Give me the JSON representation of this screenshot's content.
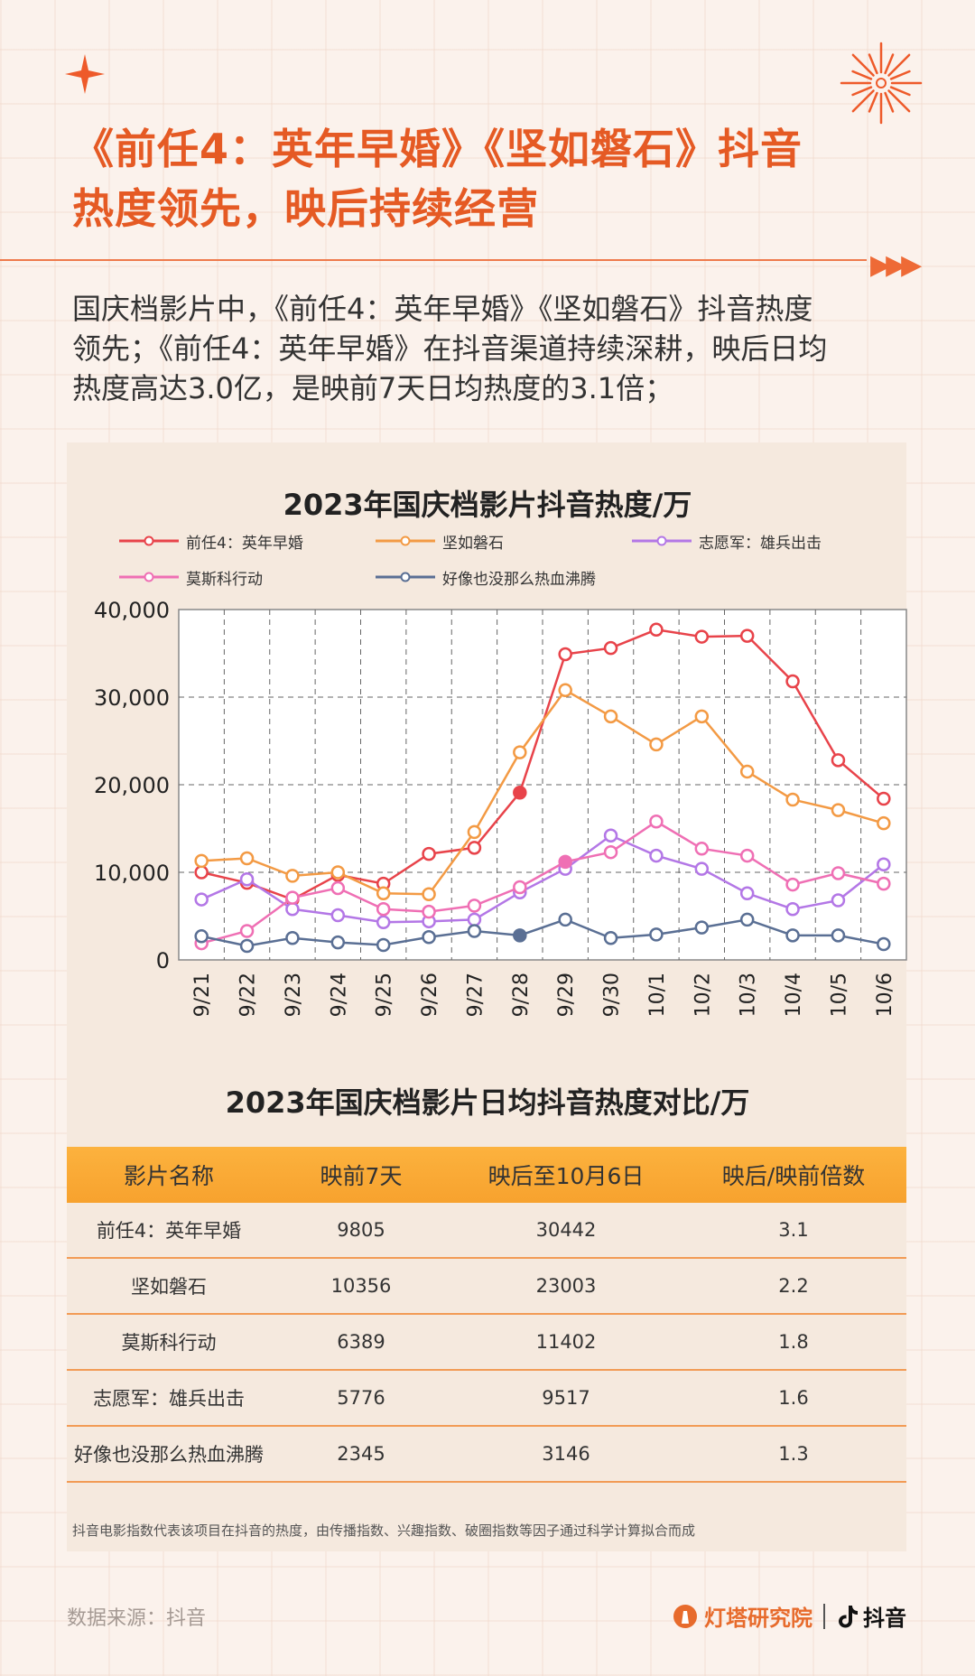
{
  "header": {
    "title_line1": "《前任4：英年早婚》《坚如磐石》抖音",
    "title_line2": "热度领先，映后持续经营",
    "arrows": "▶▶▶"
  },
  "intro": {
    "line1": "国庆档影片中，《前任4：英年早婚》《坚如磐石》抖音热度",
    "line2": "领先；《前任4：英年早婚》在抖音渠道持续深耕，映后日均",
    "line3": "热度高达3.0亿，是映前7天日均热度的3.1倍；"
  },
  "chart_data": {
    "type": "line",
    "title": "2023年国庆档影片抖音热度/万",
    "categories": [
      "9/21",
      "9/22",
      "9/23",
      "9/24",
      "9/25",
      "9/26",
      "9/27",
      "9/28",
      "9/29",
      "9/30",
      "10/1",
      "10/2",
      "10/3",
      "10/4",
      "10/5",
      "10/6"
    ],
    "ylim": [
      0,
      40000
    ],
    "yticks": [
      "0",
      "10,000",
      "20,000",
      "30,000",
      "40,000"
    ],
    "ytick_values": [
      0,
      10000,
      20000,
      30000,
      40000
    ],
    "grid": true,
    "legend": "top",
    "series": [
      {
        "name": "前任4：英年早婚",
        "color": "#e8434a",
        "values": [
          10000,
          8800,
          6900,
          9700,
          8700,
          12100,
          12800,
          19100,
          34900,
          35600,
          37700,
          36900,
          37000,
          31800,
          22800,
          18400
        ],
        "filled_index": 7
      },
      {
        "name": "坚如磐石",
        "color": "#f39a44",
        "values": [
          11300,
          11600,
          9600,
          10000,
          7600,
          7500,
          14600,
          23700,
          30800,
          27800,
          24600,
          27800,
          21500,
          18300,
          17100,
          15600
        ],
        "filled_index": -1
      },
      {
        "name": "志愿军：雄兵出击",
        "color": "#b377e6",
        "values": [
          6900,
          9200,
          5800,
          5100,
          4300,
          4400,
          4600,
          7700,
          10400,
          14200,
          11900,
          10400,
          7600,
          5800,
          6800,
          10900
        ],
        "filled_index": -1
      },
      {
        "name": "莫斯科行动",
        "color": "#ef6fb4",
        "values": [
          1900,
          3300,
          7100,
          8200,
          5800,
          5500,
          6200,
          8300,
          11200,
          12300,
          15800,
          12700,
          11900,
          8600,
          9900,
          8700
        ],
        "filled_index": 8
      },
      {
        "name": "好像也没那么热血沸腾",
        "color": "#5a6f94",
        "values": [
          2700,
          1600,
          2500,
          2000,
          1700,
          2600,
          3300,
          2800,
          4600,
          2500,
          2900,
          3700,
          4600,
          2800,
          2800,
          1800
        ],
        "filled_index": 7
      }
    ]
  },
  "table": {
    "title": "2023年国庆档影片日均抖音热度对比/万",
    "headers": [
      "影片名称",
      "映前7天",
      "映后至10月6日",
      "映后/映前倍数"
    ],
    "rows": [
      [
        "前任4：英年早婚",
        "9805",
        "30442",
        "3.1"
      ],
      [
        "坚如磐石",
        "10356",
        "23003",
        "2.2"
      ],
      [
        "莫斯科行动",
        "6389",
        "11402",
        "1.8"
      ],
      [
        "志愿军：雄兵出击",
        "5776",
        "9517",
        "1.6"
      ],
      [
        "好像也没那么热血沸腾",
        "2345",
        "3146",
        "1.3"
      ]
    ]
  },
  "footnote": "抖音电影指数代表该项目在抖音的热度，由传播指数、兴趣指数、破圈指数等因子通过科学计算拟合而成",
  "footer": {
    "source": "数据来源：抖音",
    "brand1": "灯塔研究院",
    "brand2": "抖音"
  },
  "colors": {
    "accent": "#e55a24",
    "table_header": "#f7a22e"
  }
}
